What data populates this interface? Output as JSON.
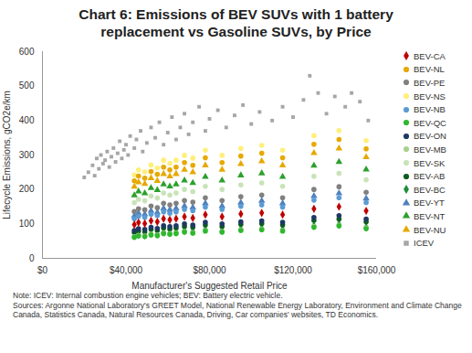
{
  "chart_data": {
    "type": "scatter",
    "title": "Chart 6: Emissions of BEV SUVs with 1 battery replacement vs Gasoline SUVs, by Price",
    "x_label": "Manufacturer's Suggested Retail Price",
    "y_label": "Lifecycle Emissions, gCO2e/km",
    "notes": [
      "Note: ICEV: Internal combustion engine vehicles; BEV: Battery electric vehicle.",
      "Sources: Argonne National Laboratory's GREET Model, National Renewable Energy Laboratory, Environment and Climate Change Canada, Statistics Canada, Natural Resources Canada, Driving, Car companies' websites, TD Economics."
    ],
    "xlim": [
      0,
      160000
    ],
    "xticks": [
      {
        "value": 0,
        "label": "$0"
      },
      {
        "value": 40000,
        "label": "$40,000"
      },
      {
        "value": 80000,
        "label": "$80,000"
      },
      {
        "value": 120000,
        "label": "$120,000"
      },
      {
        "value": 160000,
        "label": "$160,000"
      }
    ],
    "ylim": [
      0,
      600
    ],
    "yticks": [
      0,
      100,
      200,
      300,
      400,
      500,
      600
    ],
    "grid": false,
    "legend": "right",
    "x": [
      44000,
      46000,
      49000,
      52000,
      55000,
      58000,
      61000,
      64000,
      68000,
      72000,
      78000,
      86000,
      95000,
      105000,
      115000,
      130000,
      142000,
      155000
    ],
    "series": [
      {
        "name": "BEV-CA",
        "color": "#c00000",
        "marker": "diamond",
        "values": [
          98,
          104,
          101,
          109,
          106,
          115,
          112,
          115,
          121,
          117,
          127,
          121,
          129,
          132,
          127,
          144,
          150,
          138
        ]
      },
      {
        "name": "BEV-NL",
        "color": "#e8a800",
        "marker": "circle",
        "values": [
          225,
          239,
          233,
          252,
          244,
          265,
          257,
          265,
          278,
          270,
          292,
          278,
          297,
          305,
          292,
          331,
          345,
          318
        ]
      },
      {
        "name": "BEV-PE",
        "color": "#808080",
        "marker": "circle",
        "values": [
          136,
          144,
          141,
          152,
          147,
          160,
          155,
          160,
          168,
          163,
          176,
          168,
          179,
          184,
          176,
          200,
          208,
          192
        ]
      },
      {
        "name": "BEV-NS",
        "color": "#ffef7a",
        "marker": "circle",
        "values": [
          242,
          257,
          251,
          271,
          262,
          285,
          276,
          285,
          299,
          291,
          314,
          299,
          319,
          328,
          314,
          356,
          371,
          342
        ]
      },
      {
        "name": "BEV-NB",
        "color": "#5b9bd5",
        "marker": "circle",
        "values": [
          115,
          122,
          119,
          128,
          124,
          135,
          131,
          135,
          142,
          138,
          149,
          142,
          151,
          155,
          149,
          169,
          176,
          162
        ]
      },
      {
        "name": "BEV-QC",
        "color": "#2eb82e",
        "marker": "circle",
        "values": [
          61,
          65,
          63,
          68,
          66,
          72,
          70,
          72,
          76,
          73,
          79,
          76,
          81,
          83,
          79,
          90,
          94,
          86
        ]
      },
      {
        "name": "BEV-ON",
        "color": "#1f3864",
        "marker": "circle",
        "values": [
          81,
          86,
          84,
          90,
          87,
          95,
          92,
          95,
          100,
          97,
          105,
          100,
          106,
          109,
          105,
          119,
          124,
          114
        ]
      },
      {
        "name": "BEV-MB",
        "color": "#a9d18e",
        "marker": "circle",
        "values": [
          63,
          67,
          65,
          70,
          68,
          74,
          72,
          74,
          78,
          75,
          81,
          78,
          83,
          85,
          81,
          93,
          96,
          89
        ]
      },
      {
        "name": "BEV-SK",
        "color": "#c9e3b8",
        "marker": "circle",
        "values": [
          162,
          171,
          167,
          181,
          175,
          190,
          184,
          190,
          200,
          194,
          209,
          200,
          213,
          219,
          209,
          238,
          247,
          228
        ]
      },
      {
        "name": "BEV-AB",
        "color": "#0b5d1e",
        "marker": "circle",
        "values": [
          75,
          79,
          77,
          84,
          81,
          88,
          85,
          88,
          92,
          90,
          97,
          92,
          99,
          101,
          97,
          110,
          114,
          106
        ]
      },
      {
        "name": "BEV-BC",
        "color": "#1e8c3a",
        "marker": "diamond",
        "values": [
          65,
          68,
          67,
          72,
          70,
          76,
          74,
          76,
          80,
          78,
          84,
          80,
          85,
          87,
          84,
          95,
          99,
          91
        ]
      },
      {
        "name": "BEV-YT",
        "color": "#4f81bd",
        "marker": "triangle",
        "values": [
          123,
          131,
          128,
          138,
          133,
          145,
          141,
          145,
          152,
          148,
          160,
          152,
          162,
          167,
          160,
          181,
          189,
          174
        ]
      },
      {
        "name": "BEV-NT",
        "color": "#2ca02c",
        "marker": "triangle",
        "values": [
          183,
          194,
          189,
          204,
          198,
          215,
          209,
          215,
          226,
          219,
          237,
          226,
          241,
          247,
          237,
          269,
          280,
          258
        ]
      },
      {
        "name": "BEV-NU",
        "color": "#e6a800",
        "marker": "triangle",
        "values": [
          208,
          221,
          216,
          233,
          225,
          245,
          238,
          245,
          257,
          250,
          270,
          257,
          274,
          282,
          270,
          306,
          319,
          294
        ]
      },
      {
        "name": "ICEV",
        "color": "#a6a6a6",
        "marker": "square",
        "x": [
          20000,
          22000,
          24000,
          25000,
          26000,
          27000,
          28000,
          29000,
          30000,
          31000,
          32000,
          33000,
          34000,
          35000,
          36000,
          37000,
          38000,
          39000,
          40000,
          41000,
          42000,
          44000,
          45000,
          47000,
          48000,
          50000,
          52000,
          54000,
          56000,
          58000,
          60000,
          62000,
          64000,
          66000,
          68000,
          70000,
          72000,
          75000,
          78000,
          80000,
          84000,
          88000,
          92000,
          96000,
          100000,
          104000,
          110000,
          115000,
          120000,
          125000,
          128000,
          132000,
          136000,
          140000,
          145000,
          148000,
          152000,
          156000
        ],
        "values": [
          235,
          250,
          270,
          240,
          290,
          260,
          300,
          275,
          285,
          310,
          265,
          295,
          320,
          280,
          305,
          340,
          290,
          315,
          330,
          300,
          355,
          320,
          345,
          370,
          310,
          335,
          380,
          350,
          395,
          330,
          365,
          410,
          345,
          380,
          420,
          360,
          395,
          440,
          370,
          405,
          430,
          380,
          415,
          445,
          390,
          425,
          400,
          440,
          410,
          460,
          530,
          480,
          420,
          470,
          440,
          480,
          455,
          400
        ]
      }
    ]
  }
}
